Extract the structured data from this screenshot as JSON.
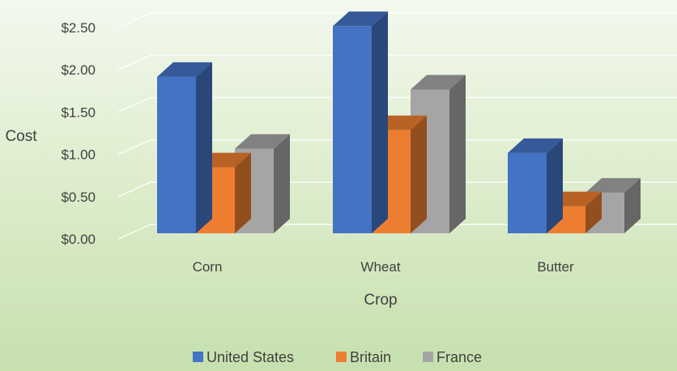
{
  "chart_data": {
    "type": "bar",
    "categories": [
      "Corn",
      "Wheat",
      "Butter"
    ],
    "series": [
      {
        "name": "United States",
        "values": [
          1.85,
          2.45,
          0.95
        ],
        "color": "#4472c4"
      },
      {
        "name": "Britain",
        "values": [
          0.78,
          1.22,
          0.32
        ],
        "color": "#ed7d31"
      },
      {
        "name": "France",
        "values": [
          1.0,
          1.7,
          0.48
        ],
        "color": "#a5a5a5"
      }
    ],
    "yticks": [
      "$0.00",
      "$0.50",
      "$1.00",
      "$1.50",
      "$2.00",
      "$2.50"
    ],
    "ylim": [
      0,
      2.5
    ],
    "xlabel": "Crop",
    "ylabel": "Cost",
    "grid": true,
    "legend": "bottom"
  }
}
